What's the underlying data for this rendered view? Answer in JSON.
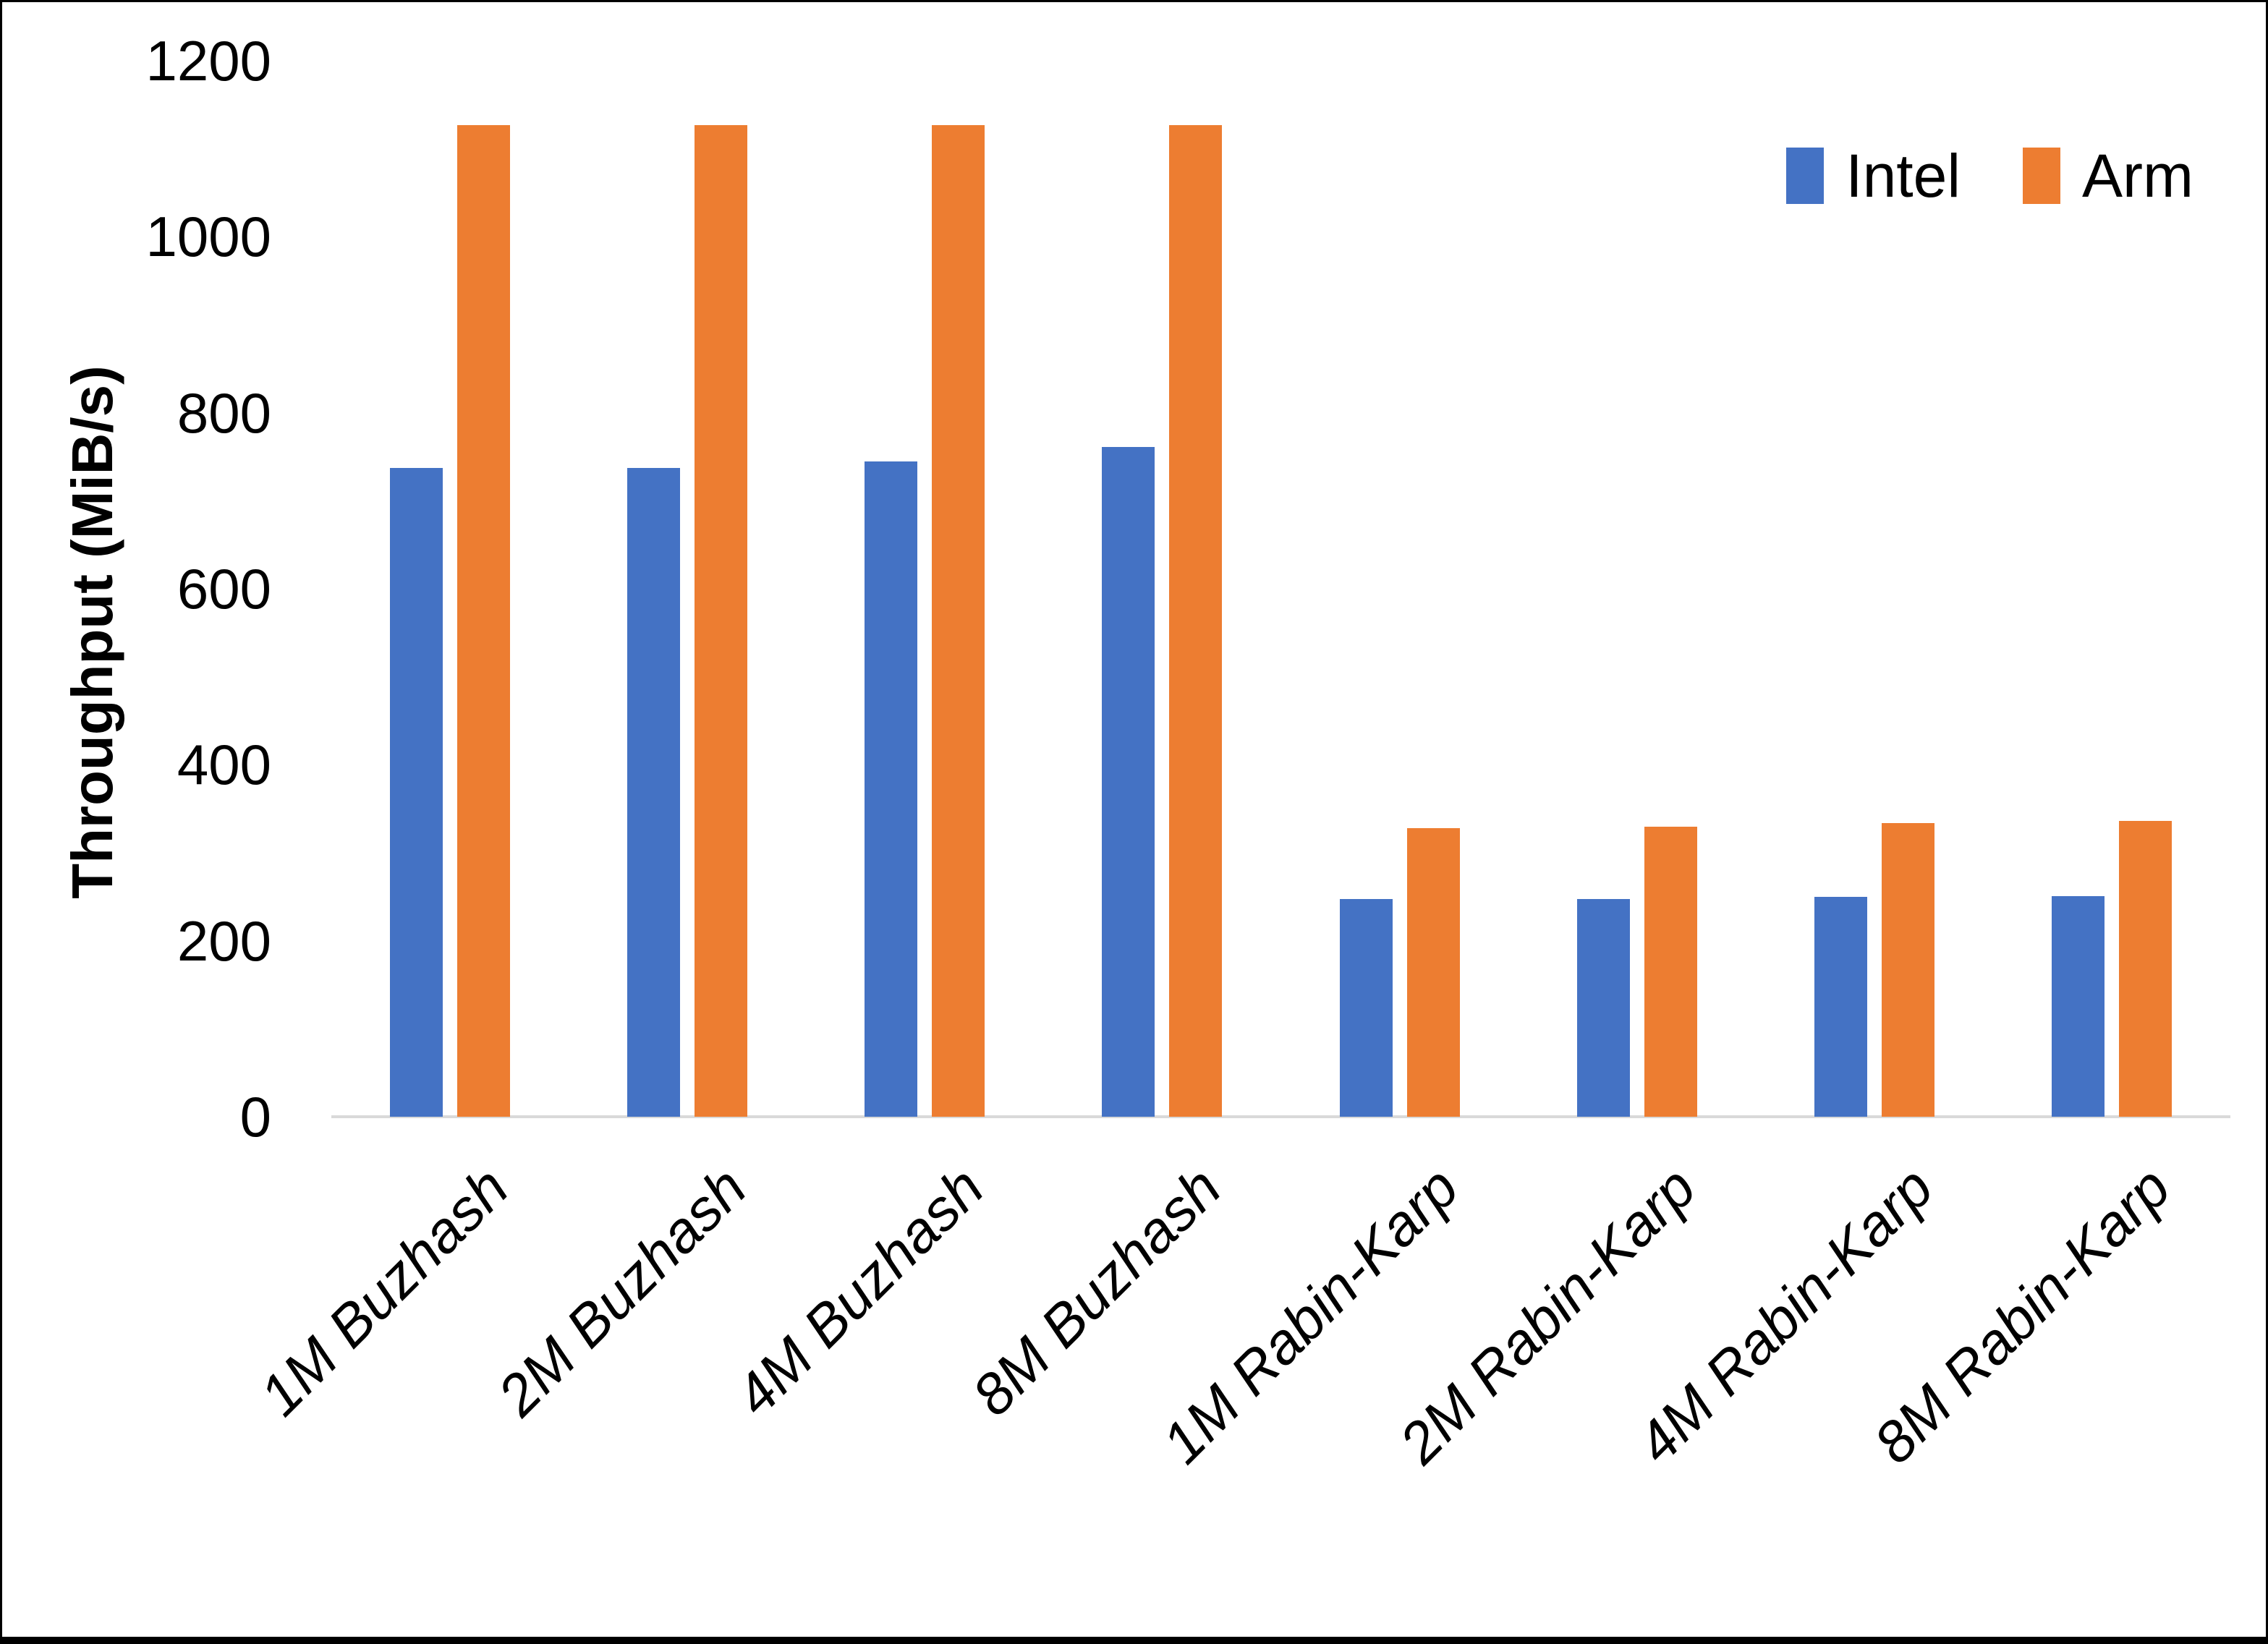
{
  "chart_data": {
    "type": "bar",
    "title": "",
    "ylabel": "Throughput (MiB/s)",
    "xlabel": "",
    "ylim": [
      0,
      1200
    ],
    "yticks": [
      0,
      200,
      400,
      600,
      800,
      1000,
      1200
    ],
    "grid": false,
    "legend_position": "top-right",
    "axis_line_color": "#d9d9d9",
    "categories": [
      "1M Buzhash",
      "2M Buzhash",
      "4M Buzhash",
      "8M Buzhash",
      "1M Rabin-Karp",
      "2M Rabin-Karp",
      "4M Rabin-Karp",
      "8M Rabin-Karp"
    ],
    "series": [
      {
        "name": "Intel",
        "color": "#4472C4",
        "values": [
          737,
          737,
          745,
          761,
          247,
          247,
          250,
          251
        ]
      },
      {
        "name": "Arm",
        "color": "#ED7D31",
        "values": [
          1127,
          1127,
          1127,
          1127,
          328,
          330,
          334,
          336
        ]
      }
    ]
  }
}
